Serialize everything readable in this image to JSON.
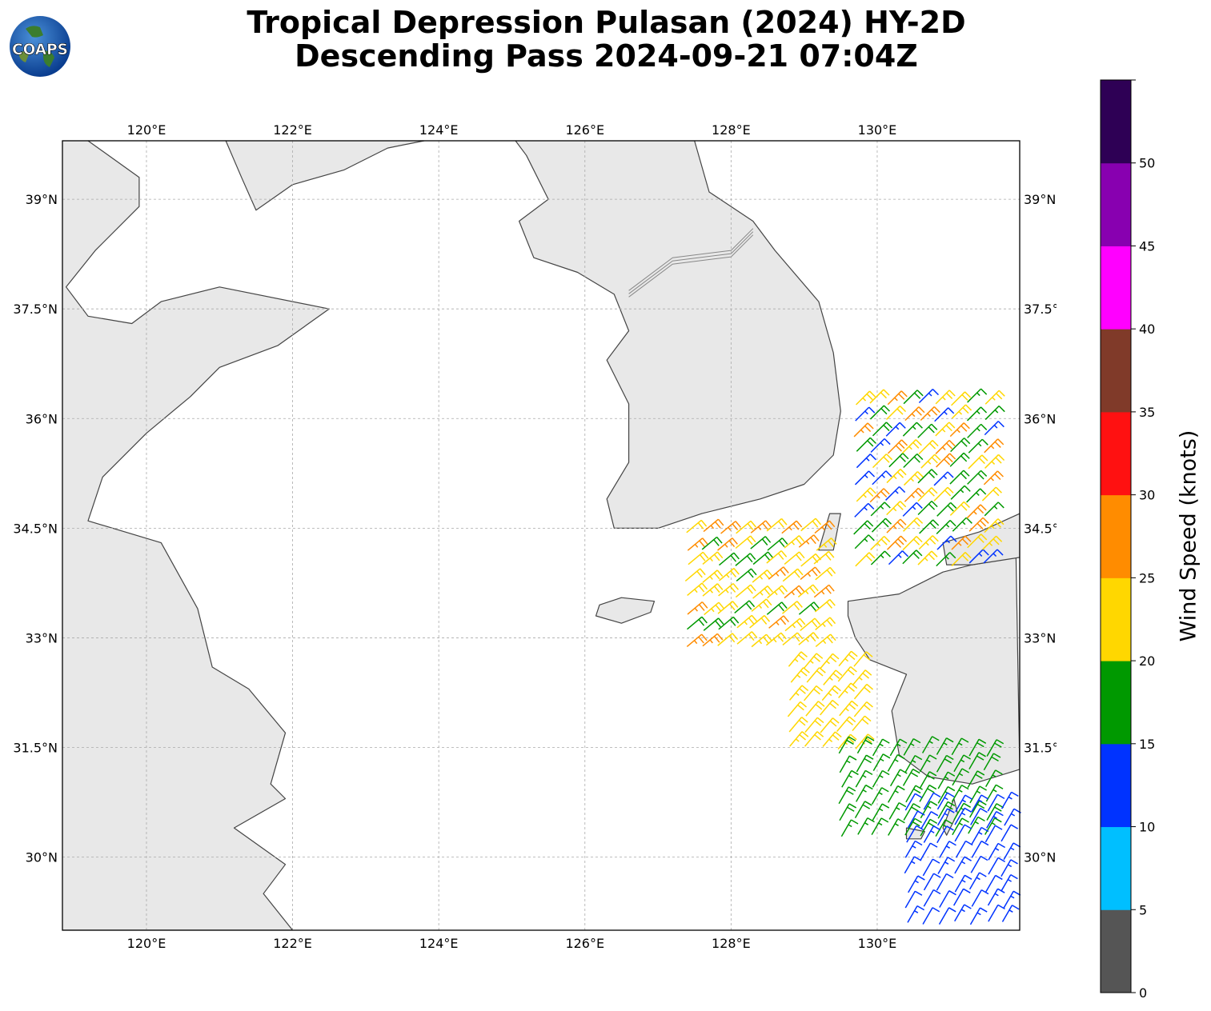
{
  "title": {
    "line1": "Tropical Depression Pulasan (2024) HY-2D",
    "line2": "Descending Pass 2024-09-21 07:04Z"
  },
  "logo": {
    "text": "COAPS",
    "icon": "globe-logo-icon"
  },
  "map": {
    "lon_range": [
      118.85,
      131.95
    ],
    "lat_range": [
      29.0,
      39.8
    ],
    "lon_ticks": [
      120,
      122,
      124,
      126,
      128,
      130
    ],
    "lat_ticks": [
      39,
      37.5,
      36,
      34.5,
      33,
      31.5,
      30
    ],
    "lon_tick_labels": [
      "120°E",
      "122°E",
      "124°E",
      "126°E",
      "128°E",
      "130°E"
    ],
    "lat_tick_labels": [
      "39°N",
      "37.5°N",
      "36°N",
      "34.5°N",
      "33°N",
      "31.5°N",
      "30°N"
    ],
    "gridlines": true,
    "coast_color": "#444444",
    "land_color": "#e8e8e8"
  },
  "colorbar": {
    "label": "Wind Speed (knots)",
    "ticks": [
      "0",
      "5",
      "10",
      "15",
      "20",
      "25",
      "30",
      "35",
      "40",
      "45",
      "50"
    ],
    "bins": [
      {
        "min": 0,
        "max": 5,
        "color": "#555555"
      },
      {
        "min": 5,
        "max": 10,
        "color": "#00bfff"
      },
      {
        "min": 10,
        "max": 15,
        "color": "#0033ff"
      },
      {
        "min": 15,
        "max": 20,
        "color": "#009900"
      },
      {
        "min": 20,
        "max": 25,
        "color": "#ffd700"
      },
      {
        "min": 25,
        "max": 30,
        "color": "#ff8c00"
      },
      {
        "min": 30,
        "max": 35,
        "color": "#ff1111"
      },
      {
        "min": 35,
        "max": 40,
        "color": "#803a29"
      },
      {
        "min": 40,
        "max": 45,
        "color": "#ff00ff"
      },
      {
        "min": 45,
        "max": 50,
        "color": "#8800b0"
      },
      {
        "min": 50,
        "max": 55,
        "color": "#2e0055"
      }
    ]
  },
  "wind_swaths": [
    {
      "region": "east-korea",
      "lon": [
        129.7,
        131.6
      ],
      "lat": [
        34.0,
        36.2
      ],
      "dir": 225,
      "speed_min": 13,
      "speed_max": 28
    },
    {
      "region": "korea-strait-west",
      "lon": [
        127.4,
        129.2
      ],
      "lat": [
        32.9,
        34.6
      ],
      "dir": 230,
      "speed_min": 19,
      "speed_max": 27
    },
    {
      "region": "east-china-sea",
      "lon": [
        128.8,
        129.8
      ],
      "lat": [
        31.5,
        32.6
      ],
      "dir": 220,
      "speed_min": 20,
      "speed_max": 24
    },
    {
      "region": "south-swath-green",
      "lon": [
        129.5,
        131.5
      ],
      "lat": [
        30.3,
        31.5
      ],
      "dir": 210,
      "speed_min": 15,
      "speed_max": 19
    },
    {
      "region": "south-swath-blue",
      "lon": [
        130.4,
        131.9
      ],
      "lat": [
        29.1,
        30.7
      ],
      "dir": 210,
      "speed_min": 10,
      "speed_max": 15
    }
  ]
}
